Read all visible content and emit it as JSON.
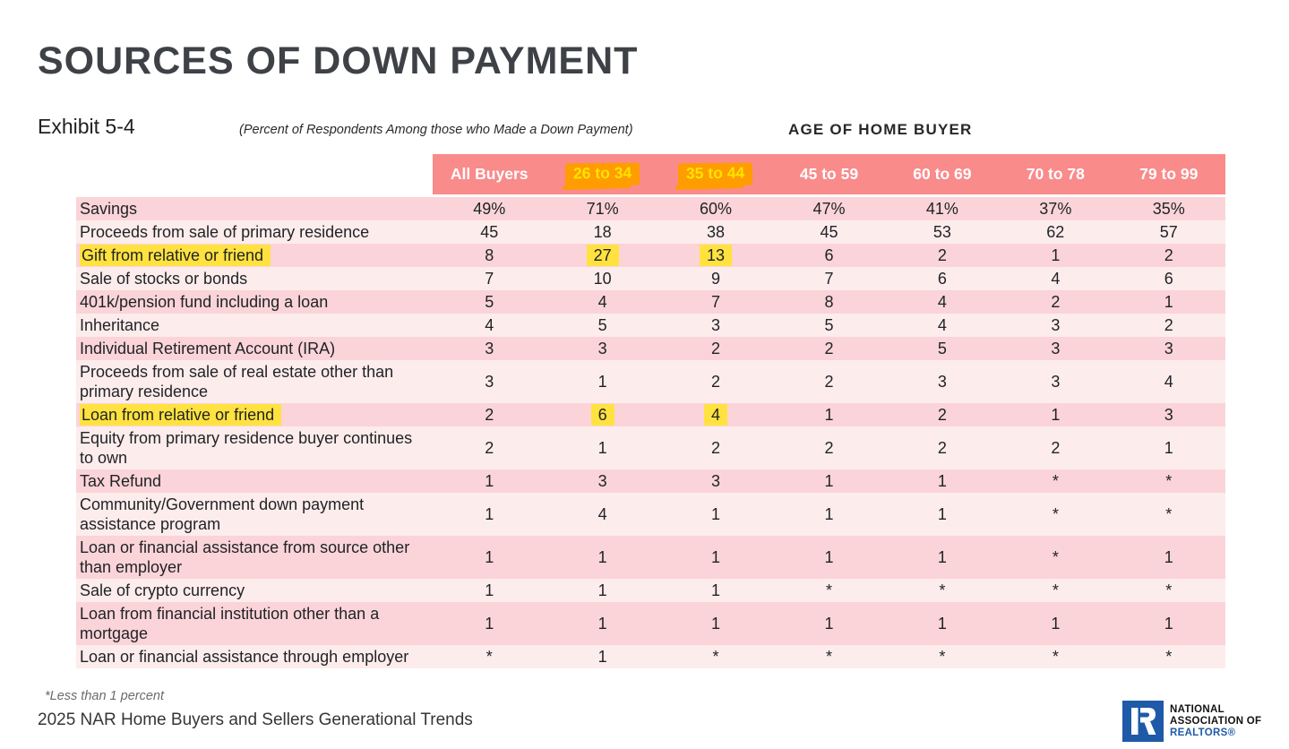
{
  "page": {
    "title": "SOURCES OF DOWN PAYMENT",
    "exhibit": "Exhibit 5-4",
    "subtitle": "(Percent of Respondents Among those who Made a Down Payment)",
    "age_header": "AGE OF HOME BUYER",
    "footnote": "*Less than 1 percent",
    "source": "2025 NAR Home Buyers and Sellers Generational Trends"
  },
  "table": {
    "columns": [
      "All Buyers",
      "26 to 34",
      "35 to 44",
      "45 to 59",
      "60 to 69",
      "70 to 78",
      "79 to 99"
    ],
    "highlighted_columns": [
      1,
      2
    ],
    "rows": [
      {
        "label": "Savings",
        "values": [
          "49%",
          "71%",
          "60%",
          "47%",
          "41%",
          "37%",
          "35%"
        ],
        "label_highlight": false,
        "highlight_cells": []
      },
      {
        "label": "Proceeds from sale of primary residence",
        "values": [
          "45",
          "18",
          "38",
          "45",
          "53",
          "62",
          "57"
        ],
        "label_highlight": false,
        "highlight_cells": []
      },
      {
        "label": "Gift from relative or friend",
        "values": [
          "8",
          "27",
          "13",
          "6",
          "2",
          "1",
          "2"
        ],
        "label_highlight": true,
        "highlight_cells": [
          1,
          2
        ]
      },
      {
        "label": "Sale of stocks or bonds",
        "values": [
          "7",
          "10",
          "9",
          "7",
          "6",
          "4",
          "6"
        ],
        "label_highlight": false,
        "highlight_cells": []
      },
      {
        "label": "401k/pension fund including a loan",
        "values": [
          "5",
          "4",
          "7",
          "8",
          "4",
          "2",
          "1"
        ],
        "label_highlight": false,
        "highlight_cells": []
      },
      {
        "label": "Inheritance",
        "values": [
          "4",
          "5",
          "3",
          "5",
          "4",
          "3",
          "2"
        ],
        "label_highlight": false,
        "highlight_cells": []
      },
      {
        "label": "Individual Retirement Account (IRA)",
        "values": [
          "3",
          "3",
          "2",
          "2",
          "5",
          "3",
          "3"
        ],
        "label_highlight": false,
        "highlight_cells": []
      },
      {
        "label": "Proceeds from sale of real estate other than primary residence",
        "values": [
          "3",
          "1",
          "2",
          "2",
          "3",
          "3",
          "4"
        ],
        "label_highlight": false,
        "highlight_cells": []
      },
      {
        "label": "Loan from relative or friend",
        "values": [
          "2",
          "6",
          "4",
          "1",
          "2",
          "1",
          "3"
        ],
        "label_highlight": true,
        "highlight_cells": [
          1,
          2
        ]
      },
      {
        "label": "Equity from primary residence buyer continues to own",
        "values": [
          "2",
          "1",
          "2",
          "2",
          "2",
          "2",
          "1"
        ],
        "label_highlight": false,
        "highlight_cells": []
      },
      {
        "label": "Tax Refund",
        "values": [
          "1",
          "3",
          "3",
          "1",
          "1",
          "*",
          "*"
        ],
        "label_highlight": false,
        "highlight_cells": []
      },
      {
        "label": "Community/Government down payment assistance program",
        "values": [
          "1",
          "4",
          "1",
          "1",
          "1",
          "*",
          "*"
        ],
        "label_highlight": false,
        "highlight_cells": []
      },
      {
        "label": "Loan or financial assistance from source other than employer",
        "values": [
          "1",
          "1",
          "1",
          "1",
          "1",
          "*",
          "1"
        ],
        "label_highlight": false,
        "highlight_cells": []
      },
      {
        "label": "Sale of crypto currency",
        "values": [
          "1",
          "1",
          "1",
          "*",
          "*",
          "*",
          "*"
        ],
        "label_highlight": false,
        "highlight_cells": []
      },
      {
        "label": "Loan from financial institution other than a mortgage",
        "values": [
          "1",
          "1",
          "1",
          "1",
          "1",
          "1",
          "1"
        ],
        "label_highlight": false,
        "highlight_cells": []
      },
      {
        "label": "Loan or financial assistance through employer",
        "values": [
          "*",
          "1",
          "*",
          "*",
          "*",
          "*",
          "*"
        ],
        "label_highlight": false,
        "highlight_cells": []
      }
    ]
  },
  "logo": {
    "line1": "NATIONAL",
    "line2": "ASSOCIATION OF",
    "line3": "REALTORS®"
  },
  "colors": {
    "header_bg": "#F98B8B",
    "row_dark": "#FAD4D8",
    "row_light": "#FDECEC",
    "highlight_yellow": "#FFE23F",
    "highlight_orange": "#FF9C00",
    "highlight_header_text": "#FFE400",
    "title_text": "#3E4247",
    "nar_blue": "#1E5AA8"
  }
}
